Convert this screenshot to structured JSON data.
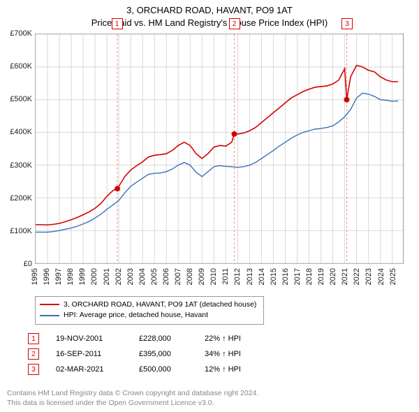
{
  "title": {
    "line1": "3, ORCHARD ROAD, HAVANT, PO9 1AT",
    "line2": "Price paid vs. HM Land Registry's House Price Index (HPI)",
    "fontsize": 13
  },
  "chart": {
    "type": "line",
    "background_color": "#ffffff",
    "border_color": "#999999",
    "grid_color": "#d8d8d8",
    "xlim": [
      1995,
      2025.9
    ],
    "ylim": [
      0,
      700000
    ],
    "ytick_step": 100000,
    "yticks": [
      "£0",
      "£100K",
      "£200K",
      "£300K",
      "£400K",
      "£500K",
      "£600K",
      "£700K"
    ],
    "xticks": [
      "1995",
      "1996",
      "1997",
      "1998",
      "1999",
      "2000",
      "2001",
      "2002",
      "2003",
      "2004",
      "2005",
      "2006",
      "2007",
      "2008",
      "2009",
      "2010",
      "2011",
      "2012",
      "2013",
      "2014",
      "2015",
      "2016",
      "2017",
      "2018",
      "2019",
      "2020",
      "2021",
      "2022",
      "2023",
      "2024",
      "2025"
    ],
    "series": [
      {
        "name": "property",
        "label": "3, ORCHARD ROAD, HAVANT, PO9 1AT (detached house)",
        "color": "#d40000",
        "line_width": 1.6,
        "points": [
          [
            1995.0,
            118
          ],
          [
            1995.5,
            118
          ],
          [
            1996.0,
            117
          ],
          [
            1996.5,
            119
          ],
          [
            1997.0,
            122
          ],
          [
            1997.5,
            127
          ],
          [
            1998.0,
            133
          ],
          [
            1998.5,
            140
          ],
          [
            1999.0,
            148
          ],
          [
            1999.5,
            157
          ],
          [
            2000.0,
            168
          ],
          [
            2000.5,
            183
          ],
          [
            2001.0,
            205
          ],
          [
            2001.5,
            222
          ],
          [
            2001.88,
            228
          ],
          [
            2002.0,
            235
          ],
          [
            2002.5,
            265
          ],
          [
            2003.0,
            285
          ],
          [
            2003.5,
            298
          ],
          [
            2004.0,
            310
          ],
          [
            2004.5,
            325
          ],
          [
            2005.0,
            330
          ],
          [
            2005.5,
            332
          ],
          [
            2006.0,
            335
          ],
          [
            2006.5,
            345
          ],
          [
            2007.0,
            360
          ],
          [
            2007.5,
            370
          ],
          [
            2008.0,
            360
          ],
          [
            2008.5,
            335
          ],
          [
            2009.0,
            320
          ],
          [
            2009.5,
            335
          ],
          [
            2010.0,
            355
          ],
          [
            2010.5,
            360
          ],
          [
            2011.0,
            358
          ],
          [
            2011.5,
            370
          ],
          [
            2011.71,
            395
          ],
          [
            2012.0,
            395
          ],
          [
            2012.5,
            398
          ],
          [
            2013.0,
            405
          ],
          [
            2013.5,
            415
          ],
          [
            2014.0,
            430
          ],
          [
            2014.5,
            445
          ],
          [
            2015.0,
            460
          ],
          [
            2015.5,
            475
          ],
          [
            2016.0,
            490
          ],
          [
            2016.5,
            505
          ],
          [
            2017.0,
            515
          ],
          [
            2017.5,
            525
          ],
          [
            2018.0,
            532
          ],
          [
            2018.5,
            538
          ],
          [
            2019.0,
            540
          ],
          [
            2019.5,
            542
          ],
          [
            2020.0,
            548
          ],
          [
            2020.5,
            560
          ],
          [
            2021.0,
            595
          ],
          [
            2021.17,
            500
          ],
          [
            2021.5,
            570
          ],
          [
            2022.0,
            605
          ],
          [
            2022.5,
            600
          ],
          [
            2023.0,
            590
          ],
          [
            2023.5,
            585
          ],
          [
            2024.0,
            570
          ],
          [
            2024.5,
            560
          ],
          [
            2025.0,
            555
          ],
          [
            2025.5,
            555
          ]
        ]
      },
      {
        "name": "hpi",
        "label": "HPI: Average price, detached house, Havant",
        "color": "#3872b8",
        "line_width": 1.4,
        "points": [
          [
            1995.0,
            95
          ],
          [
            1995.5,
            95
          ],
          [
            1996.0,
            95
          ],
          [
            1996.5,
            97
          ],
          [
            1997.0,
            100
          ],
          [
            1997.5,
            104
          ],
          [
            1998.0,
            108
          ],
          [
            1998.5,
            113
          ],
          [
            1999.0,
            120
          ],
          [
            1999.5,
            128
          ],
          [
            2000.0,
            138
          ],
          [
            2000.5,
            150
          ],
          [
            2001.0,
            165
          ],
          [
            2001.5,
            178
          ],
          [
            2002.0,
            192
          ],
          [
            2002.5,
            215
          ],
          [
            2003.0,
            235
          ],
          [
            2003.5,
            248
          ],
          [
            2004.0,
            260
          ],
          [
            2004.5,
            272
          ],
          [
            2005.0,
            275
          ],
          [
            2005.5,
            276
          ],
          [
            2006.0,
            280
          ],
          [
            2006.5,
            288
          ],
          [
            2007.0,
            300
          ],
          [
            2007.5,
            308
          ],
          [
            2008.0,
            300
          ],
          [
            2008.5,
            278
          ],
          [
            2009.0,
            265
          ],
          [
            2009.5,
            280
          ],
          [
            2010.0,
            295
          ],
          [
            2010.5,
            298
          ],
          [
            2011.0,
            296
          ],
          [
            2011.5,
            295
          ],
          [
            2012.0,
            293
          ],
          [
            2012.5,
            295
          ],
          [
            2013.0,
            300
          ],
          [
            2013.5,
            308
          ],
          [
            2014.0,
            320
          ],
          [
            2014.5,
            332
          ],
          [
            2015.0,
            345
          ],
          [
            2015.5,
            358
          ],
          [
            2016.0,
            370
          ],
          [
            2016.5,
            382
          ],
          [
            2017.0,
            392
          ],
          [
            2017.5,
            400
          ],
          [
            2018.0,
            405
          ],
          [
            2018.5,
            410
          ],
          [
            2019.0,
            412
          ],
          [
            2019.5,
            415
          ],
          [
            2020.0,
            420
          ],
          [
            2020.5,
            432
          ],
          [
            2021.0,
            448
          ],
          [
            2021.5,
            470
          ],
          [
            2022.0,
            505
          ],
          [
            2022.5,
            520
          ],
          [
            2023.0,
            517
          ],
          [
            2023.5,
            510
          ],
          [
            2024.0,
            500
          ],
          [
            2024.5,
            498
          ],
          [
            2025.0,
            495
          ],
          [
            2025.5,
            496
          ]
        ]
      }
    ],
    "sale_markers": [
      {
        "n": "1",
        "x": 2001.88,
        "y": 228,
        "color": "#d40000"
      },
      {
        "n": "2",
        "x": 2011.71,
        "y": 395,
        "color": "#d40000"
      },
      {
        "n": "3",
        "x": 2021.17,
        "y": 500,
        "color": "#d40000"
      }
    ],
    "marker_line_color": "#ff8080",
    "marker_dash": "3,3",
    "marker_dot_radius": 4
  },
  "legend": {
    "items": [
      {
        "color": "#d40000",
        "label": "3, ORCHARD ROAD, HAVANT, PO9 1AT (detached house)"
      },
      {
        "color": "#3872b8",
        "label": "HPI: Average price, detached house, Havant"
      }
    ]
  },
  "sales_table": {
    "rows": [
      {
        "n": "1",
        "date": "19-NOV-2001",
        "price": "£228,000",
        "delta": "22% ↑ HPI",
        "color": "#d40000"
      },
      {
        "n": "2",
        "date": "16-SEP-2011",
        "price": "£395,000",
        "delta": "34% ↑ HPI",
        "color": "#d40000"
      },
      {
        "n": "3",
        "date": "02-MAR-2021",
        "price": "£500,000",
        "delta": "12% ↑ HPI",
        "color": "#d40000"
      }
    ]
  },
  "copyright": {
    "line1": "Contains HM Land Registry data © Crown copyright and database right 2024.",
    "line2": "This data is licensed under the Open Government Licence v3.0.",
    "color": "#888888"
  }
}
